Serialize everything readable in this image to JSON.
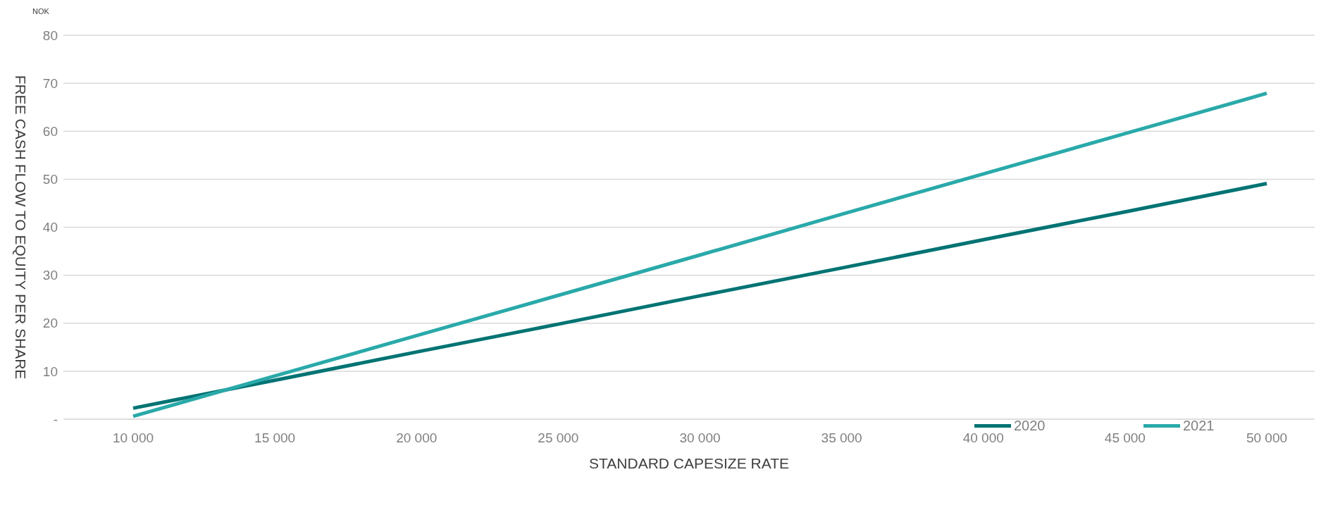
{
  "chart_data": {
    "type": "line",
    "xlabel": "STANDARD CAPESIZE RATE",
    "ylabel": "FREE CASH FLOW TO EQUITY PER SHARE",
    "annotations": [
      "NOK"
    ],
    "categories": [
      "10 000",
      "15 000",
      "20 000",
      "25 000",
      "30 000",
      "35 000",
      "40 000",
      "45 000",
      "50 000"
    ],
    "series": [
      {
        "name": "2020",
        "color": "#007373",
        "values": [
          2.3,
          8.1,
          14.0,
          19.8,
          25.7,
          31.5,
          37.4,
          43.2,
          49.1
        ]
      },
      {
        "name": "2021",
        "color": "#2aa9a9",
        "values": [
          0.6,
          9.0,
          17.4,
          25.8,
          34.2,
          42.7,
          51.1,
          59.5,
          67.9
        ]
      }
    ],
    "ylim": [
      0,
      80
    ],
    "yticks": [
      {
        "value": 0,
        "label": "-"
      },
      10,
      20,
      30,
      40,
      50,
      60,
      70,
      80
    ],
    "grid": "y",
    "legend": "bottom right",
    "marker": "none",
    "line_style": "solid"
  }
}
